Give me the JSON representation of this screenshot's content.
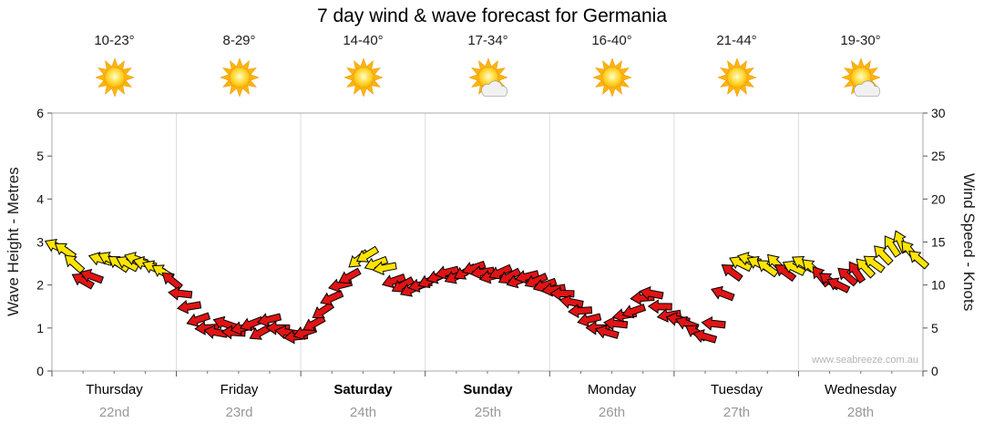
{
  "title": "7 day wind & wave forecast for Germania",
  "watermark": "www.seabreeze.com.au",
  "days": [
    {
      "name": "Thursday",
      "date": "22nd",
      "temp": "10-23°",
      "icon": "sunny",
      "bold": false
    },
    {
      "name": "Friday",
      "date": "23rd",
      "temp": "8-29°",
      "icon": "sunny",
      "bold": false
    },
    {
      "name": "Saturday",
      "date": "24th",
      "temp": "14-40°",
      "icon": "sunny",
      "bold": true
    },
    {
      "name": "Sunday",
      "date": "25th",
      "temp": "17-34°",
      "icon": "partly-cloudy",
      "bold": true
    },
    {
      "name": "Monday",
      "date": "26th",
      "temp": "16-40°",
      "icon": "sunny",
      "bold": false
    },
    {
      "name": "Tuesday",
      "date": "27th",
      "temp": "21-44°",
      "icon": "sunny",
      "bold": false
    },
    {
      "name": "Wednesday",
      "date": "28th",
      "temp": "19-30°",
      "icon": "partly-cloudy",
      "bold": false
    }
  ],
  "chart_data": {
    "type": "scatter",
    "subtype": "wind-direction-arrows",
    "title": "7 day wind & wave forecast for Germania",
    "x_categories": [
      "Thursday 22nd",
      "Friday 23rd",
      "Saturday 24th",
      "Sunday 25th",
      "Monday 26th",
      "Tuesday 27th",
      "Wednesday 28th"
    ],
    "y_axis_left": {
      "label": "Wave Height - Metres",
      "range": [
        0,
        6
      ],
      "ticks": [
        0,
        1,
        2,
        3,
        4,
        5,
        6
      ]
    },
    "y_axis_right": {
      "label": "Wind Speed - Knots",
      "range": [
        0,
        30
      ],
      "ticks": [
        0,
        5,
        10,
        15,
        20,
        25,
        30
      ]
    },
    "points_per_day": 14,
    "colors": {
      "y": "#FFE400",
      "r": "#E01414"
    },
    "point_format": [
      "wind_speed_knots",
      "color_band(y=yellow,r=red)",
      "direction_deg"
    ],
    "points": [
      [
        14.5,
        "y",
        205
      ],
      [
        14,
        "y",
        215
      ],
      [
        12.5,
        "y",
        222
      ],
      [
        10.5,
        "r",
        210
      ],
      [
        11,
        "r",
        200
      ],
      [
        13,
        "y",
        196
      ],
      [
        13,
        "y",
        206
      ],
      [
        12.5,
        "y",
        214
      ],
      [
        12.5,
        "y",
        208
      ],
      [
        13,
        "y",
        199
      ],
      [
        12.5,
        "y",
        195
      ],
      [
        12,
        "y",
        204
      ],
      [
        11.5,
        "y",
        211
      ],
      [
        10.5,
        "r",
        219
      ],
      [
        9,
        "r",
        186
      ],
      [
        7.5,
        "r",
        171
      ],
      [
        6,
        "r",
        161
      ],
      [
        5,
        "r",
        176
      ],
      [
        4.5,
        "r",
        190
      ],
      [
        5.5,
        "r",
        199
      ],
      [
        4.5,
        "r",
        184
      ],
      [
        5,
        "r",
        169
      ],
      [
        5.5,
        "r",
        159
      ],
      [
        4.5,
        "r",
        151
      ],
      [
        6,
        "r",
        166
      ],
      [
        5,
        "r",
        181
      ],
      [
        4.5,
        "r",
        189
      ],
      [
        4,
        "r",
        174
      ],
      [
        4.5,
        "r",
        161
      ],
      [
        5.5,
        "r",
        151
      ],
      [
        7,
        "r",
        146
      ],
      [
        8.5,
        "r",
        156
      ],
      [
        10,
        "r",
        166
      ],
      [
        11,
        "r",
        151
      ],
      [
        13,
        "y",
        141
      ],
      [
        13.5,
        "y",
        149
      ],
      [
        12.5,
        "y",
        159
      ],
      [
        12,
        "y",
        169
      ],
      [
        10.5,
        "r",
        161
      ],
      [
        10,
        "r",
        151
      ],
      [
        9.5,
        "r",
        156
      ],
      [
        10,
        "r",
        166
      ],
      [
        10.5,
        "r",
        156
      ],
      [
        11,
        "r",
        161
      ],
      [
        11.5,
        "r",
        166
      ],
      [
        11,
        "r",
        156
      ],
      [
        11.5,
        "r",
        151
      ],
      [
        12,
        "r",
        161
      ],
      [
        11.5,
        "r",
        171
      ],
      [
        11,
        "r",
        166
      ],
      [
        11.5,
        "r",
        156
      ],
      [
        11,
        "r",
        151
      ],
      [
        10.5,
        "r",
        161
      ],
      [
        11,
        "r",
        166
      ],
      [
        10.5,
        "r",
        156
      ],
      [
        10,
        "r",
        161
      ],
      [
        9.5,
        "r",
        171
      ],
      [
        9,
        "r",
        181
      ],
      [
        8,
        "r",
        191
      ],
      [
        7,
        "r",
        176
      ],
      [
        6,
        "r",
        166
      ],
      [
        5,
        "r",
        181
      ],
      [
        4.5,
        "r",
        196
      ],
      [
        5.5,
        "r",
        186
      ],
      [
        6.5,
        "r",
        171
      ],
      [
        7,
        "r",
        161
      ],
      [
        8.5,
        "r",
        176
      ],
      [
        9,
        "r",
        191
      ],
      [
        7.5,
        "r",
        181
      ],
      [
        6.5,
        "r",
        171
      ],
      [
        6,
        "r",
        191
      ],
      [
        5.5,
        "r",
        201
      ],
      [
        4.5,
        "r",
        211
      ],
      [
        4,
        "r",
        196
      ],
      [
        5.5,
        "r",
        186
      ],
      [
        9,
        "r",
        201
      ],
      [
        11.5,
        "r",
        216
      ],
      [
        12.5,
        "y",
        206
      ],
      [
        13,
        "y",
        196
      ],
      [
        12.5,
        "y",
        206
      ],
      [
        12,
        "y",
        216
      ],
      [
        12.5,
        "y",
        226
      ],
      [
        11.5,
        "r",
        216
      ],
      [
        12,
        "y",
        206
      ],
      [
        12.5,
        "y",
        211
      ],
      [
        12,
        "y",
        221
      ],
      [
        11,
        "r",
        231
      ],
      [
        10.5,
        "r",
        216
      ],
      [
        10,
        "r",
        206
      ],
      [
        11,
        "r",
        221
      ],
      [
        11.5,
        "r",
        236
      ],
      [
        12,
        "y",
        226
      ],
      [
        12.5,
        "y",
        216
      ],
      [
        13.5,
        "y",
        226
      ],
      [
        14.5,
        "y",
        236
      ],
      [
        15,
        "y",
        246
      ],
      [
        14,
        "y",
        231
      ],
      [
        13,
        "y",
        221
      ]
    ]
  }
}
